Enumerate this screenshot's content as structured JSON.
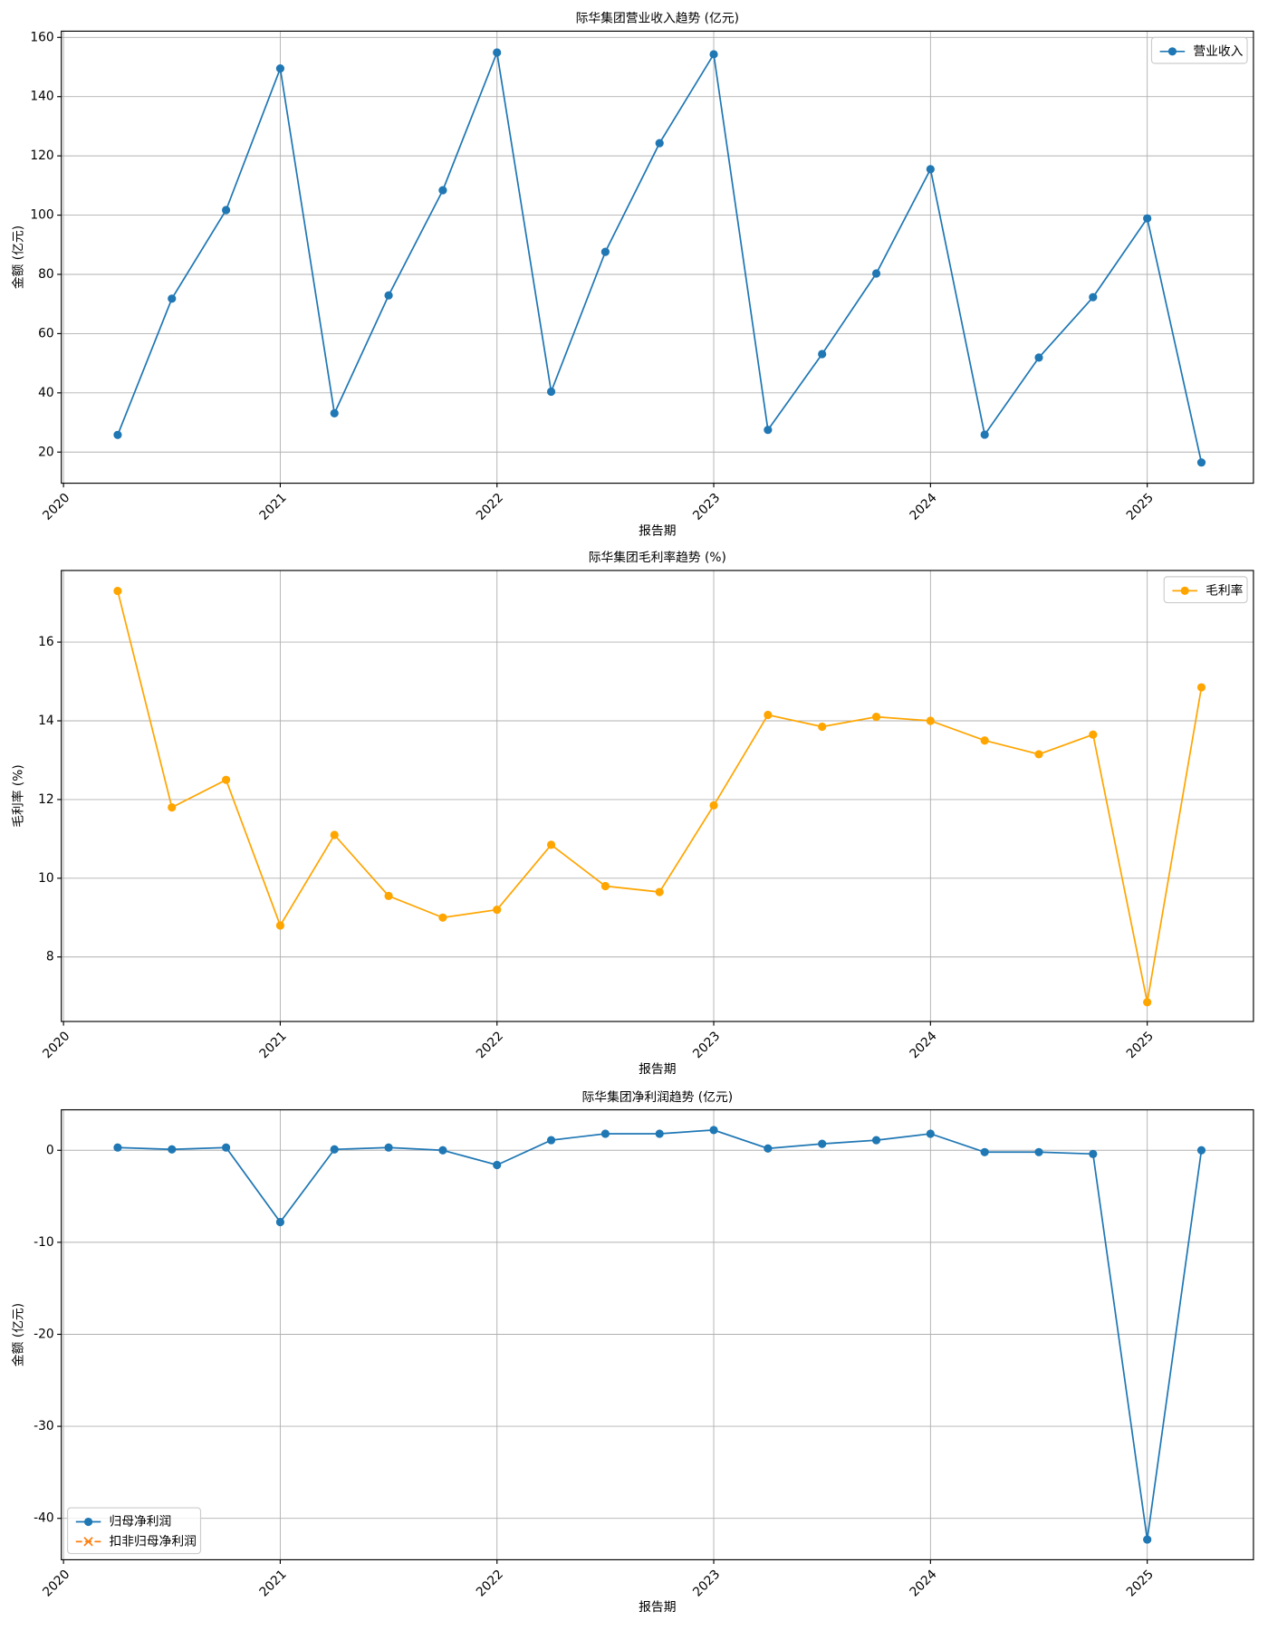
{
  "chart_data": [
    {
      "type": "line",
      "title": "际华集团营业收入趋势 (亿元)",
      "xlabel": "报告期",
      "ylabel": "金额 (亿元)",
      "x": [
        2020.25,
        2020.5,
        2020.75,
        2021,
        2021.25,
        2021.5,
        2021.75,
        2022,
        2022.25,
        2022.5,
        2022.75,
        2023,
        2023.25,
        2023.5,
        2023.75,
        2024,
        2024.25,
        2024.5,
        2024.75,
        2025,
        2025.25
      ],
      "series": [
        {
          "name": "营业收入",
          "color": "#1f77b4",
          "marker": "o",
          "linestyle": "solid",
          "values": [
            25.8,
            71.8,
            101.7,
            149.5,
            33.1,
            72.9,
            108.4,
            154.9,
            40.4,
            87.6,
            124.3,
            154.3,
            27.5,
            53.1,
            80.3,
            115.5,
            25.9,
            51.9,
            72.3,
            98.9,
            16.5
          ]
        }
      ],
      "xlim": [
        2019.99,
        2025.49
      ],
      "ylim": [
        9.5,
        162.1
      ],
      "xticks": [
        2020,
        2021,
        2022,
        2023,
        2024,
        2025
      ],
      "yticks": [
        20,
        40,
        60,
        80,
        100,
        120,
        140,
        160
      ],
      "grid": true,
      "legend": "upper right"
    },
    {
      "type": "line",
      "title": "际华集团毛利率趋势 (%)",
      "xlabel": "报告期",
      "ylabel": "毛利率 (%)",
      "x": [
        2020.25,
        2020.5,
        2020.75,
        2021,
        2021.25,
        2021.5,
        2021.75,
        2022,
        2022.25,
        2022.5,
        2022.75,
        2023,
        2023.25,
        2023.5,
        2023.75,
        2024,
        2024.25,
        2024.5,
        2024.75,
        2025,
        2025.25
      ],
      "series": [
        {
          "name": "毛利率",
          "color": "#ffa500",
          "marker": "o",
          "linestyle": "solid",
          "values": [
            17.3,
            11.8,
            12.5,
            8.8,
            11.1,
            9.55,
            9.0,
            9.2,
            10.85,
            9.8,
            9.65,
            11.85,
            14.15,
            13.85,
            14.1,
            14.0,
            13.5,
            13.15,
            13.65,
            6.85,
            14.85
          ]
        }
      ],
      "xlim": [
        2019.99,
        2025.49
      ],
      "ylim": [
        6.36,
        17.82
      ],
      "xticks": [
        2020,
        2021,
        2022,
        2023,
        2024,
        2025
      ],
      "yticks": [
        8,
        10,
        12,
        14,
        16
      ],
      "grid": true,
      "legend": "upper right"
    },
    {
      "type": "line",
      "title": "际华集团净利润趋势 (亿元)",
      "xlabel": "报告期",
      "ylabel": "金额 (亿元)",
      "x": [
        2020.25,
        2020.5,
        2020.75,
        2021,
        2021.25,
        2021.5,
        2021.75,
        2022,
        2022.25,
        2022.5,
        2022.75,
        2023,
        2023.25,
        2023.5,
        2023.75,
        2024,
        2024.25,
        2024.5,
        2024.75,
        2025,
        2025.25
      ],
      "series": [
        {
          "name": "归母净利润",
          "color": "#1f77b4",
          "marker": "o",
          "linestyle": "solid",
          "values": [
            0.3,
            0.1,
            0.3,
            -7.8,
            0.1,
            0.3,
            0.0,
            -1.6,
            1.1,
            1.8,
            1.8,
            2.2,
            0.2,
            0.7,
            1.1,
            1.8,
            -0.2,
            -0.2,
            -0.4,
            -42.3,
            0.0
          ]
        },
        {
          "name": "扣非归母净利润",
          "color": "#ff7f0e",
          "marker": "x",
          "linestyle": "dashed",
          "values": [
            null,
            null,
            null,
            null,
            null,
            null,
            null,
            null,
            null,
            null,
            null,
            null,
            null,
            null,
            null,
            null,
            null,
            null,
            null,
            null,
            null
          ]
        }
      ],
      "xlim": [
        2019.99,
        2025.49
      ],
      "ylim": [
        -44.5,
        4.4
      ],
      "xticks": [
        2020,
        2021,
        2022,
        2023,
        2024,
        2025
      ],
      "yticks": [
        0,
        -10,
        -20,
        -30,
        -40
      ],
      "grid": true,
      "legend": "lower left"
    }
  ]
}
